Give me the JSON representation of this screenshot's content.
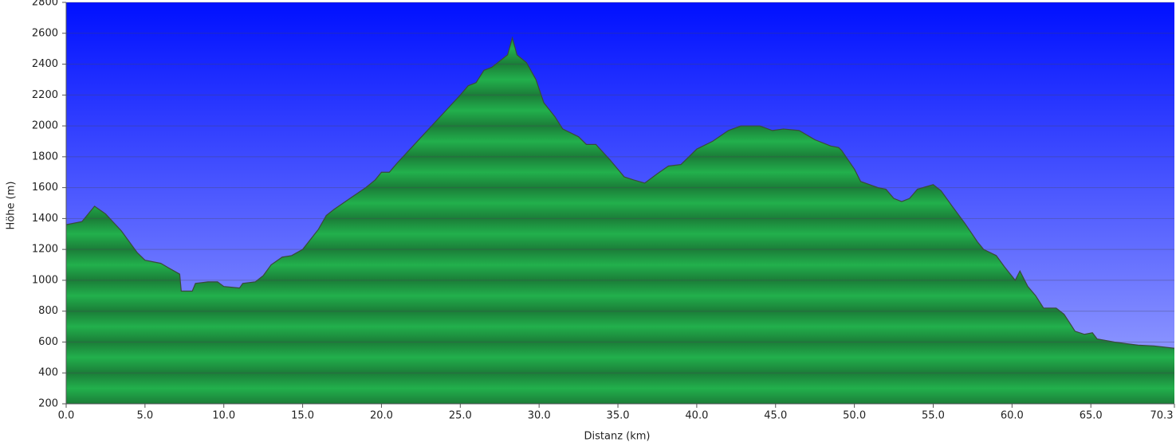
{
  "chart_data": {
    "type": "area",
    "x_label": "Distanz   (km)",
    "y_label": "Höhe (m)",
    "x": [
      0,
      1,
      1.8,
      2.5,
      3.5,
      4.5,
      5,
      6,
      6.5,
      7.2,
      7.3,
      8,
      8.2,
      9,
      9.6,
      10,
      11,
      11.2,
      12,
      12.5,
      13,
      13.7,
      14.3,
      15,
      16,
      16.5,
      17,
      18,
      19,
      19.6,
      20,
      20.5,
      21,
      22,
      23,
      24,
      25,
      25.5,
      26,
      26.5,
      27,
      27.5,
      28,
      28.3,
      28.6,
      29.2,
      29.8,
      30.3,
      31,
      31.5,
      32.5,
      33,
      33.6,
      34.5,
      35.4,
      36,
      36.7,
      37.5,
      38.2,
      39,
      40,
      41,
      42,
      42.8,
      44,
      44.8,
      45.5,
      46.5,
      47.5,
      48.5,
      49,
      49.2,
      50,
      50.4,
      51.5,
      52,
      52.5,
      53,
      53.5,
      54,
      55,
      55.5,
      56.2,
      57,
      57.8,
      58.2,
      59,
      59.5,
      60.2,
      60.5,
      61,
      61.5,
      62,
      62.8,
      63.3,
      64,
      64.6,
      65.1,
      65.4,
      66.5,
      67.2,
      68,
      69,
      70.3
    ],
    "series": [
      {
        "name": "Höhe",
        "color": "#1fa84a",
        "values": [
          1360,
          1380,
          1480,
          1430,
          1320,
          1180,
          1130,
          1110,
          1080,
          1040,
          930,
          930,
          980,
          990,
          990,
          960,
          950,
          980,
          990,
          1030,
          1100,
          1150,
          1160,
          1200,
          1330,
          1420,
          1460,
          1530,
          1600,
          1650,
          1700,
          1700,
          1760,
          1870,
          1980,
          2090,
          2200,
          2260,
          2280,
          2360,
          2380,
          2420,
          2460,
          2570,
          2460,
          2410,
          2300,
          2150,
          2060,
          1980,
          1930,
          1880,
          1880,
          1780,
          1670,
          1650,
          1630,
          1690,
          1740,
          1750,
          1850,
          1900,
          1970,
          2000,
          2000,
          1970,
          1980,
          1970,
          1910,
          1870,
          1860,
          1840,
          1720,
          1640,
          1600,
          1590,
          1530,
          1510,
          1530,
          1590,
          1620,
          1580,
          1480,
          1370,
          1250,
          1200,
          1160,
          1090,
          1000,
          1060,
          960,
          900,
          820,
          820,
          780,
          670,
          650,
          660,
          620,
          600,
          590,
          580,
          575,
          560
        ]
      }
    ],
    "xlim": [
      0,
      70.3
    ],
    "ylim": [
      200,
      2800
    ],
    "xticks": [
      {
        "value": 0,
        "label": "0.0"
      },
      {
        "value": 5,
        "label": "5.0"
      },
      {
        "value": 10,
        "label": "10.0"
      },
      {
        "value": 15,
        "label": "15.0"
      },
      {
        "value": 20,
        "label": "20.0"
      },
      {
        "value": 25,
        "label": "25.0"
      },
      {
        "value": 30,
        "label": "30.0"
      },
      {
        "value": 35,
        "label": "35.0"
      },
      {
        "value": 40,
        "label": "40.0"
      },
      {
        "value": 45,
        "label": "45.0"
      },
      {
        "value": 50,
        "label": "50.0"
      },
      {
        "value": 55,
        "label": "55.0"
      },
      {
        "value": 60,
        "label": "60.0"
      },
      {
        "value": 65,
        "label": "65.0"
      },
      {
        "value": 70.3,
        "label": "70.3"
      }
    ],
    "yticks": [
      200,
      400,
      600,
      800,
      1000,
      1200,
      1400,
      1600,
      1800,
      2000,
      2200,
      2400,
      2600,
      2800
    ],
    "grid": true
  }
}
